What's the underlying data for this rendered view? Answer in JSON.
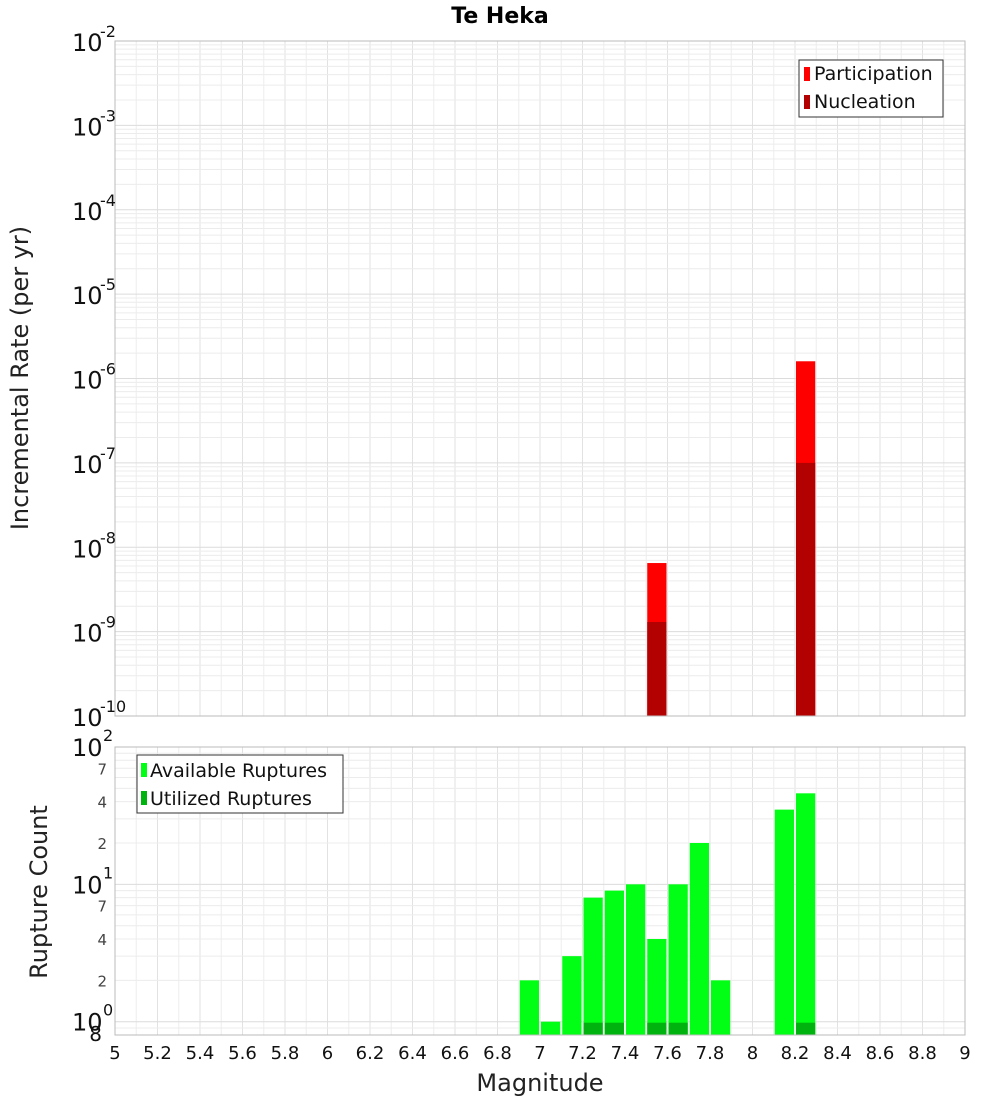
{
  "chart_data": [
    {
      "type": "bar",
      "title": "Te Heka",
      "ylabel": "Incremental Rate (per yr)",
      "yscale": "log",
      "ylim": [
        1e-10,
        0.01
      ],
      "xlim": [
        5,
        9
      ],
      "bar_width": 0.1,
      "grid": true,
      "legend_position": "top-right",
      "y_tick_labels": [
        {
          "base": "10",
          "exp": "-10"
        },
        {
          "base": "10",
          "exp": "-9"
        },
        {
          "base": "10",
          "exp": "-8"
        },
        {
          "base": "10",
          "exp": "-7"
        },
        {
          "base": "10",
          "exp": "-6"
        },
        {
          "base": "10",
          "exp": "-5"
        },
        {
          "base": "10",
          "exp": "-4"
        },
        {
          "base": "10",
          "exp": "-3"
        },
        {
          "base": "10",
          "exp": "-2"
        }
      ],
      "series": [
        {
          "name": "Participation",
          "color": "#ff0000",
          "points": [
            {
              "x": 7.55,
              "y": 6.5e-09
            },
            {
              "x": 8.25,
              "y": 1.6e-06
            }
          ]
        },
        {
          "name": "Nucleation",
          "color": "#b30000",
          "points": [
            {
              "x": 7.55,
              "y": 1.3e-09
            },
            {
              "x": 8.25,
              "y": 1e-07
            }
          ]
        }
      ]
    },
    {
      "type": "bar",
      "title": "",
      "xlabel": "Magnitude",
      "ylabel": "Rupture Count",
      "yscale": "log",
      "ylim": [
        0.8,
        100
      ],
      "xlim": [
        5,
        9
      ],
      "bar_width": 0.1,
      "grid": true,
      "legend_position": "top-left",
      "x_ticks": [
        "5",
        "5.2",
        "5.4",
        "5.6",
        "5.8",
        "6",
        "6.2",
        "6.4",
        "6.6",
        "6.8",
        "7",
        "7.2",
        "7.4",
        "7.6",
        "7.8",
        "8",
        "8.2",
        "8.4",
        "8.6",
        "8.8",
        "9"
      ],
      "y_major_tick_labels": [
        {
          "base": "10",
          "exp": "0"
        },
        {
          "base": "10",
          "exp": "1"
        },
        {
          "base": "10",
          "exp": "2"
        }
      ],
      "y_minor_tick_labels": [
        "8",
        "2",
        "4",
        "7",
        "2",
        "4",
        "7"
      ],
      "series": [
        {
          "name": "Available Ruptures",
          "color": "#00ff14",
          "points": [
            {
              "x": 6.95,
              "y": 2
            },
            {
              "x": 7.05,
              "y": 1
            },
            {
              "x": 7.15,
              "y": 3
            },
            {
              "x": 7.25,
              "y": 8
            },
            {
              "x": 7.35,
              "y": 9
            },
            {
              "x": 7.45,
              "y": 10
            },
            {
              "x": 7.55,
              "y": 4
            },
            {
              "x": 7.65,
              "y": 10
            },
            {
              "x": 7.75,
              "y": 20
            },
            {
              "x": 7.85,
              "y": 2
            },
            {
              "x": 8.15,
              "y": 35
            },
            {
              "x": 8.25,
              "y": 46
            }
          ]
        },
        {
          "name": "Utilized Ruptures",
          "color": "#00b30f",
          "points": [
            {
              "x": 7.25,
              "y": 1
            },
            {
              "x": 7.35,
              "y": 1
            },
            {
              "x": 7.55,
              "y": 1
            },
            {
              "x": 7.65,
              "y": 1
            },
            {
              "x": 8.25,
              "y": 1
            }
          ]
        }
      ]
    }
  ]
}
